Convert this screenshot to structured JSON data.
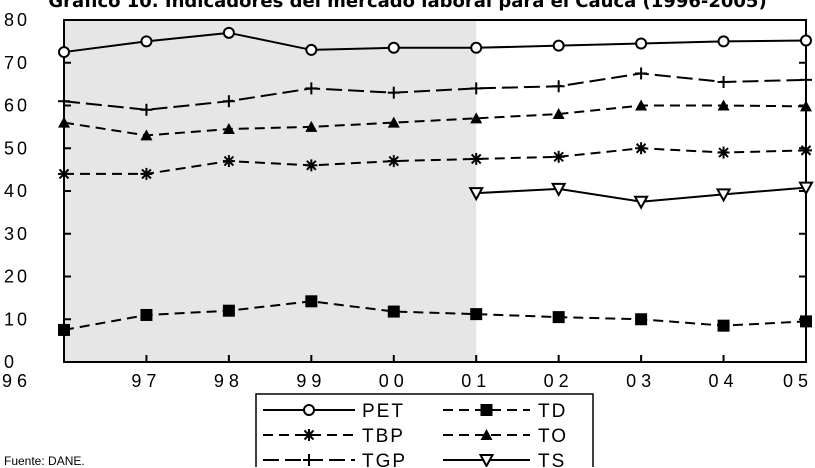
{
  "title": "Gráfico 10. Indicadores del mercado laboral para el Cauca (1996-2005)",
  "source": "Fuente: DANE.",
  "chart_data": {
    "type": "line",
    "categories": [
      "96",
      "97",
      "98",
      "99",
      "00",
      "01",
      "02",
      "03",
      "04",
      "05"
    ],
    "ylim": [
      0,
      80
    ],
    "yticks": [
      "0",
      "10",
      "20",
      "30",
      "40",
      "50",
      "60",
      "70",
      "80"
    ],
    "shaded_range": [
      "96",
      "01"
    ],
    "grid": false,
    "legend_position": "bottom",
    "series": [
      {
        "name": "PET",
        "values": [
          72.5,
          75,
          77,
          73,
          73.5,
          73.5,
          74,
          74.5,
          75,
          75.2
        ],
        "marker": "circle",
        "dash": "solid"
      },
      {
        "name": "TD",
        "values": [
          7.5,
          11,
          12,
          14.2,
          11.8,
          11.2,
          10.5,
          10,
          8.5,
          9.5
        ],
        "marker": "square",
        "dash": "dashed"
      },
      {
        "name": "TBP",
        "values": [
          44,
          44,
          47,
          46,
          47,
          47.5,
          48,
          50,
          49,
          49.5
        ],
        "marker": "star",
        "dash": "dashed"
      },
      {
        "name": "TO",
        "values": [
          56,
          53,
          54.5,
          55,
          56,
          57,
          58,
          60,
          60,
          59.8
        ],
        "marker": "triangle",
        "dash": "dashed"
      },
      {
        "name": "TGP",
        "values": [
          61,
          59,
          61,
          64,
          63,
          64,
          64.5,
          67.5,
          65.5,
          66
        ],
        "marker": "plus",
        "dash": "longdash"
      },
      {
        "name": "TS",
        "values": [
          null,
          null,
          null,
          null,
          null,
          39.5,
          40.5,
          37.5,
          39.2,
          40.8
        ],
        "marker": "triangle-down",
        "dash": "solid"
      }
    ]
  }
}
